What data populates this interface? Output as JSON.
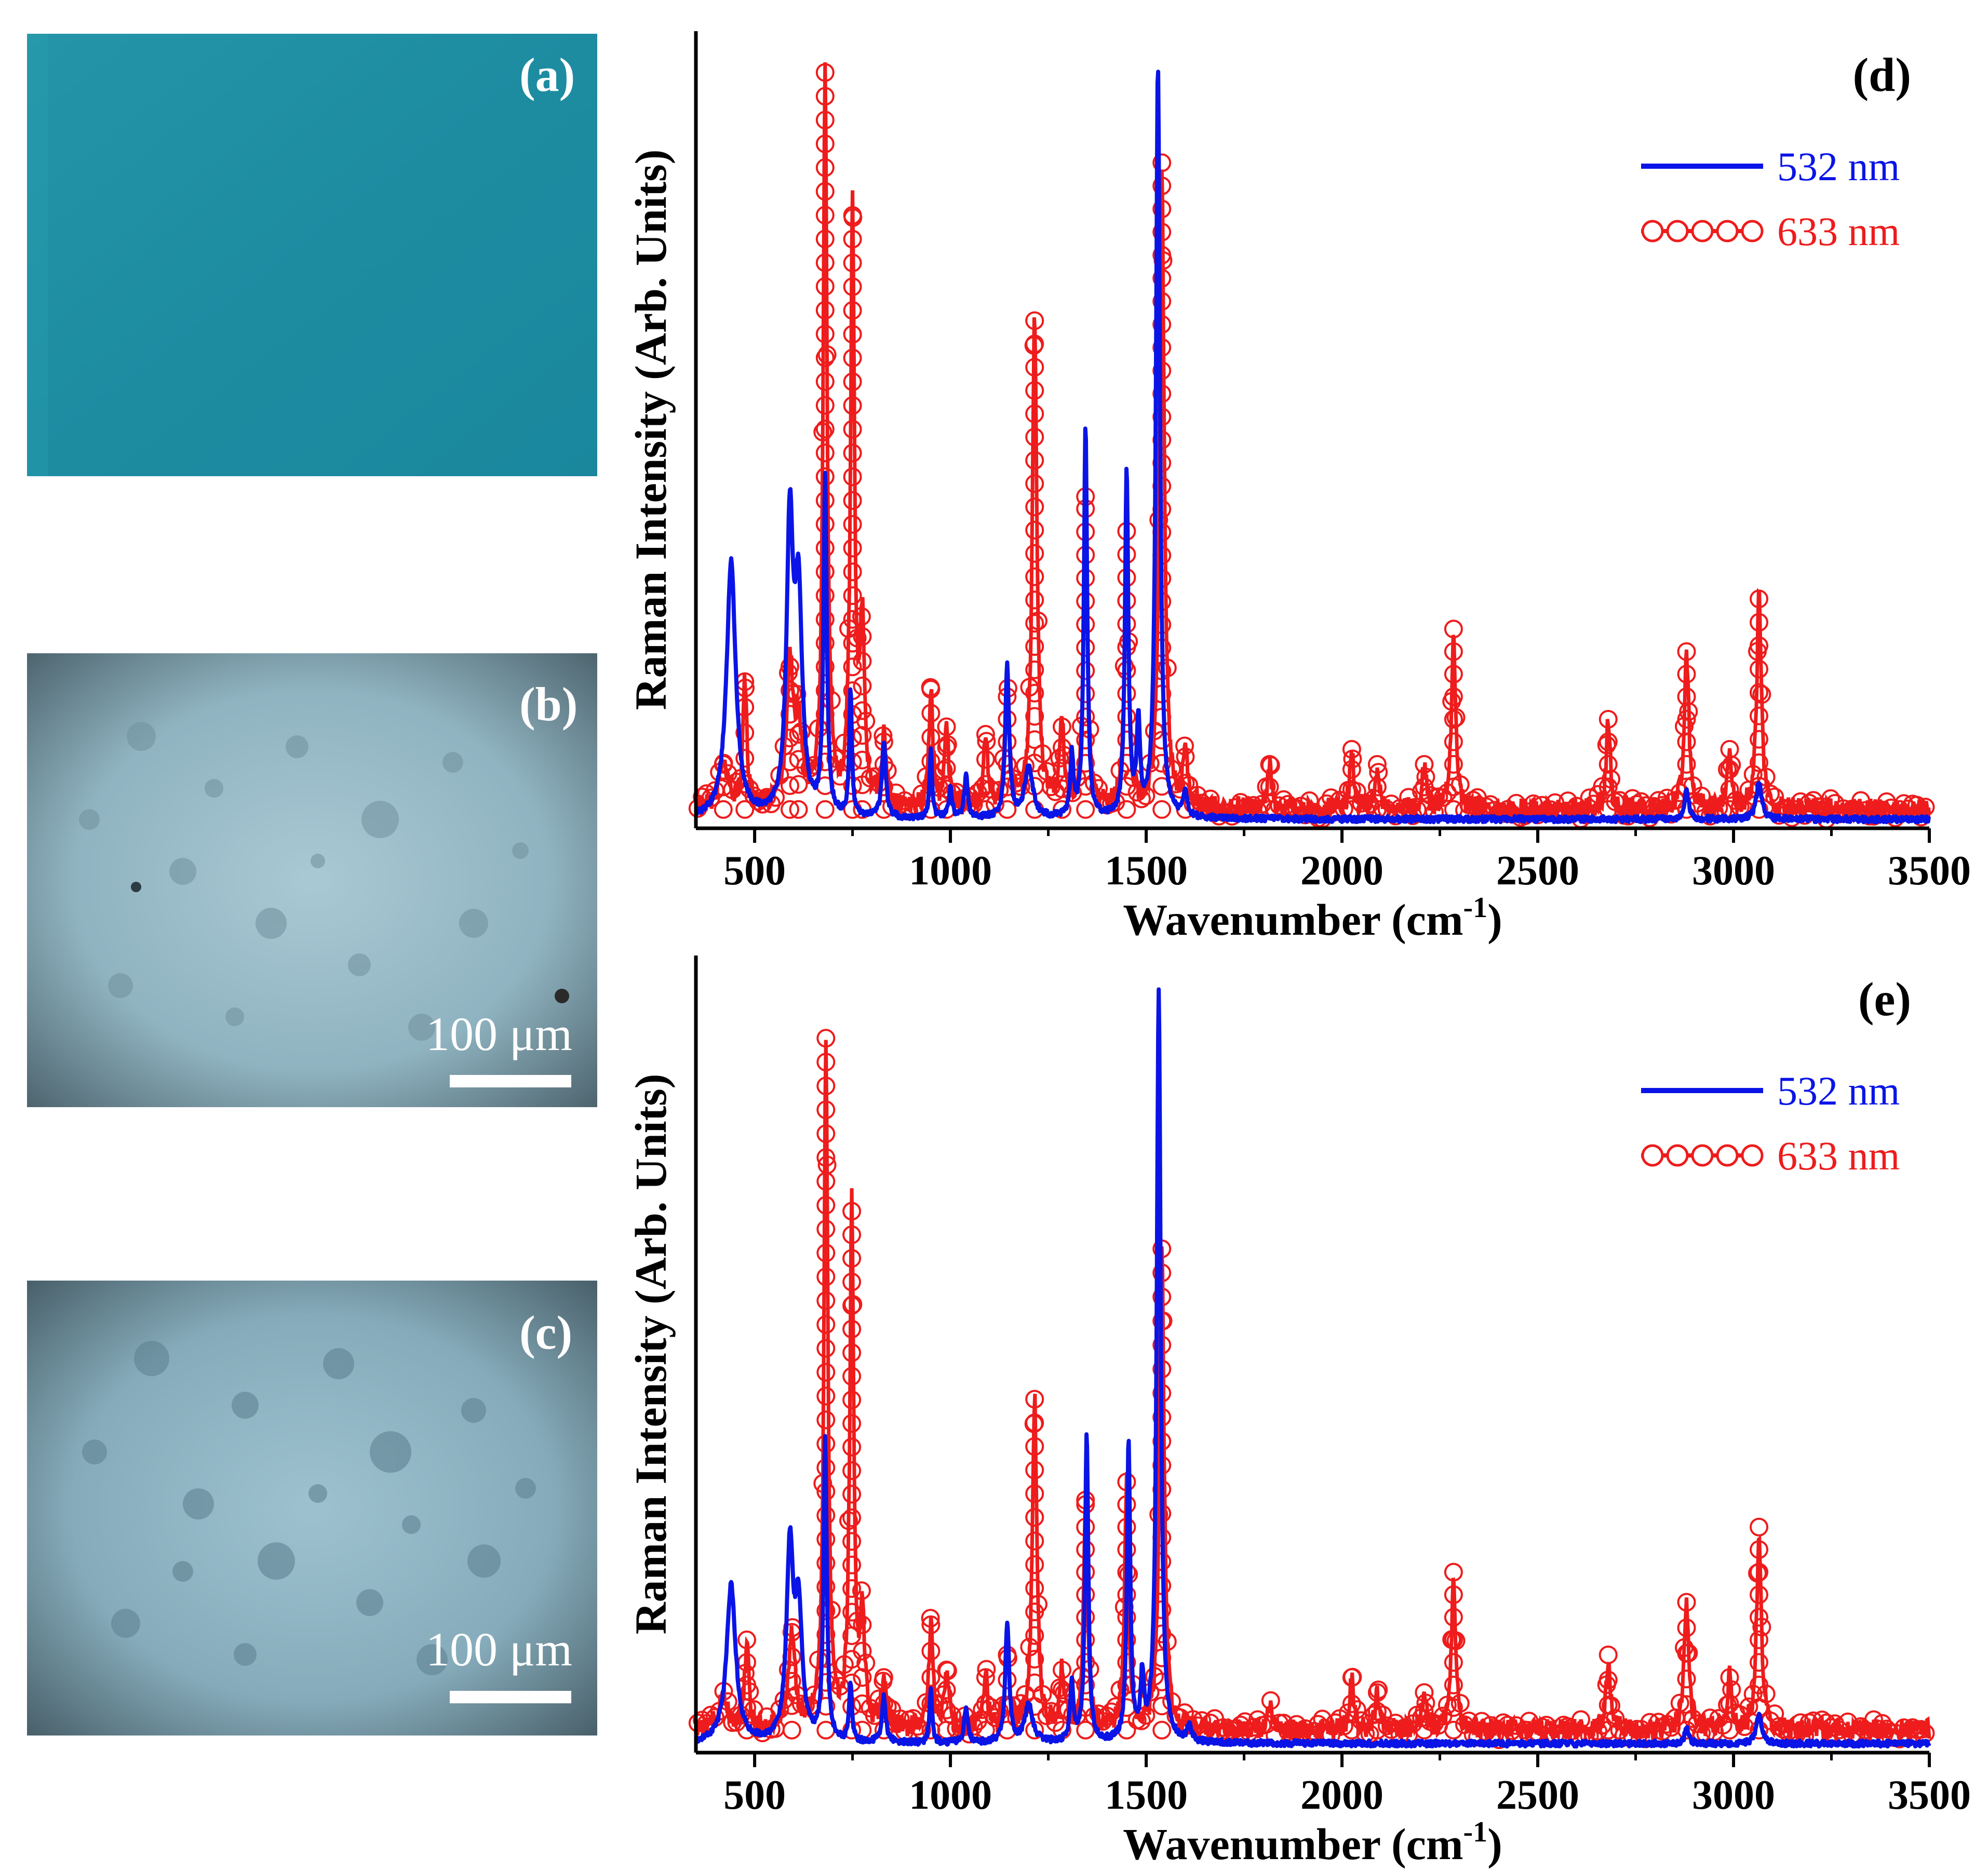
{
  "photos": [
    {
      "label": "(a)",
      "scale_text": ""
    },
    {
      "label": "(b)",
      "scale_text": "100 μm"
    },
    {
      "label": "(c)",
      "scale_text": "100 μm"
    }
  ],
  "colors": {
    "photo_a": "#1f8fa4",
    "photo_bc": "#8fb6c4",
    "series_532": "#0a14e6",
    "series_633": "#ee1c1c",
    "axis": "#000000"
  },
  "chart_data": [
    {
      "panel": "(d)",
      "type": "line",
      "xlabel": "Wavenumber (cm-1)",
      "ylabel": "Raman Intensity (Arb. Units)",
      "xlim": [
        350,
        3500
      ],
      "ylim": [
        0,
        1.06
      ],
      "xticks": [
        "500",
        "1000",
        "1500",
        "2000",
        "2500",
        "3000",
        "3500"
      ],
      "legend": [
        "532 nm",
        "633 nm"
      ],
      "legend_position": "top-right",
      "series": [
        {
          "name": "532 nm",
          "baseline": 0.012,
          "peaks": [
            [
              440,
              0.34,
              14
            ],
            [
              590,
              0.38,
              10
            ],
            [
              612,
              0.28,
              11
            ],
            [
              680,
              0.45,
              5
            ],
            [
              745,
              0.17,
              4
            ],
            [
              830,
              0.1,
              6
            ],
            [
              950,
              0.09,
              4
            ],
            [
              1000,
              0.04,
              5
            ],
            [
              1040,
              0.06,
              5
            ],
            [
              1145,
              0.2,
              6
            ],
            [
              1200,
              0.07,
              12
            ],
            [
              1310,
              0.08,
              5
            ],
            [
              1345,
              0.52,
              5
            ],
            [
              1450,
              0.46,
              5
            ],
            [
              1480,
              0.12,
              5
            ],
            [
              1530,
              1.0,
              6
            ],
            [
              1600,
              0.03,
              6
            ],
            [
              2880,
              0.04,
              6
            ],
            [
              3065,
              0.05,
              8
            ]
          ]
        },
        {
          "name": "633 nm",
          "baseline": 0.025,
          "peaks": [
            [
              420,
              0.06,
              15
            ],
            [
              475,
              0.17,
              6
            ],
            [
              590,
              0.19,
              10
            ],
            [
              612,
              0.1,
              10
            ],
            [
              680,
              0.98,
              6
            ],
            [
              750,
              0.79,
              6
            ],
            [
              775,
              0.23,
              7
            ],
            [
              830,
              0.09,
              7
            ],
            [
              950,
              0.16,
              6
            ],
            [
              990,
              0.11,
              6
            ],
            [
              1090,
              0.1,
              6
            ],
            [
              1145,
              0.15,
              7
            ],
            [
              1215,
              0.65,
              7
            ],
            [
              1285,
              0.11,
              7
            ],
            [
              1345,
              0.4,
              6
            ],
            [
              1450,
              0.37,
              6
            ],
            [
              1540,
              0.86,
              7
            ],
            [
              1600,
              0.07,
              7
            ],
            [
              1815,
              0.06,
              6
            ],
            [
              2025,
              0.08,
              6
            ],
            [
              2090,
              0.06,
              6
            ],
            [
              2210,
              0.06,
              6
            ],
            [
              2285,
              0.24,
              6
            ],
            [
              2680,
              0.12,
              6
            ],
            [
              2880,
              0.21,
              7
            ],
            [
              2990,
              0.08,
              6
            ],
            [
              3065,
              0.28,
              7
            ]
          ]
        }
      ]
    },
    {
      "panel": "(e)",
      "type": "line",
      "xlabel": "Wavenumber (cm-1)",
      "ylabel": "Raman Intensity (Arb. Units)",
      "xlim": [
        350,
        3500
      ],
      "ylim": [
        0,
        1.06
      ],
      "xticks": [
        "500",
        "1000",
        "1500",
        "2000",
        "2500",
        "3000",
        "3500"
      ],
      "legend": [
        "532 nm",
        "633 nm"
      ],
      "legend_position": "top-right",
      "series": [
        {
          "name": "532 nm",
          "baseline": 0.012,
          "peaks": [
            [
              440,
              0.21,
              14
            ],
            [
              590,
              0.25,
              10
            ],
            [
              612,
              0.17,
              11
            ],
            [
              680,
              0.4,
              5
            ],
            [
              745,
              0.08,
              4
            ],
            [
              830,
              0.06,
              6
            ],
            [
              950,
              0.07,
              4
            ],
            [
              1040,
              0.05,
              5
            ],
            [
              1145,
              0.16,
              6
            ],
            [
              1200,
              0.05,
              12
            ],
            [
              1310,
              0.08,
              5
            ],
            [
              1348,
              0.41,
              5
            ],
            [
              1455,
              0.4,
              5
            ],
            [
              1490,
              0.08,
              5
            ],
            [
              1532,
              1.0,
              6
            ],
            [
              1610,
              0.02,
              6
            ],
            [
              2880,
              0.02,
              6
            ],
            [
              3065,
              0.04,
              8
            ]
          ]
        },
        {
          "name": "633 nm",
          "baseline": 0.03,
          "peaks": [
            [
              420,
              0.04,
              15
            ],
            [
              480,
              0.12,
              6
            ],
            [
              595,
              0.13,
              10
            ],
            [
              682,
              0.92,
              6
            ],
            [
              748,
              0.69,
              6
            ],
            [
              775,
              0.14,
              7
            ],
            [
              830,
              0.07,
              7
            ],
            [
              950,
              0.14,
              6
            ],
            [
              990,
              0.08,
              6
            ],
            [
              1090,
              0.07,
              6
            ],
            [
              1145,
              0.1,
              7
            ],
            [
              1215,
              0.44,
              7
            ],
            [
              1285,
              0.08,
              7
            ],
            [
              1345,
              0.3,
              6
            ],
            [
              1450,
              0.33,
              6
            ],
            [
              1540,
              0.64,
              7
            ],
            [
              1815,
              0.04,
              6
            ],
            [
              2025,
              0.07,
              6
            ],
            [
              2090,
              0.05,
              6
            ],
            [
              2210,
              0.05,
              6
            ],
            [
              2285,
              0.21,
              6
            ],
            [
              2680,
              0.1,
              6
            ],
            [
              2880,
              0.17,
              7
            ],
            [
              2990,
              0.07,
              6
            ],
            [
              3065,
              0.27,
              7
            ]
          ]
        }
      ]
    }
  ]
}
